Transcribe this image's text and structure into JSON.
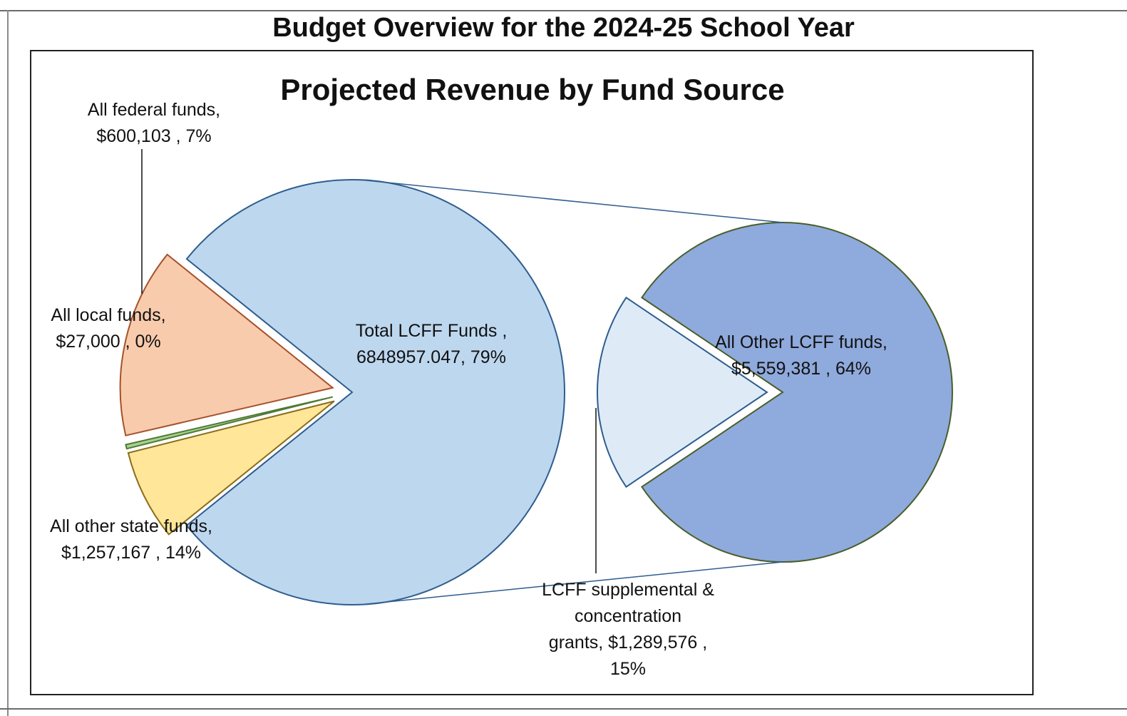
{
  "sheet_title": "Budget Overview for the 2024-25 School Year",
  "chart_data": {
    "type": "pie",
    "subtype": "pie-of-pie",
    "title": "Projected Revenue by Fund Source",
    "main_pie": {
      "slices": [
        {
          "name": "Total LCFF Funds",
          "label_lines": [
            "Total LCFF Funds ,",
            "6848957.047, 79%"
          ],
          "value": 6848957.047,
          "percent": 79,
          "color": "#bdd7ee",
          "stroke": "#2e5d8e",
          "exploded": false
        },
        {
          "name": "All federal funds",
          "label_lines": [
            "All federal funds,",
            "$600,103 , 7%"
          ],
          "value": 600103,
          "percent": 7,
          "color": "#ffe699",
          "stroke": "#8a6d1a",
          "exploded": true
        },
        {
          "name": "All local funds",
          "label_lines": [
            "All local funds,",
            "$27,000 , 0%"
          ],
          "value": 27000,
          "percent": 0,
          "color": "#a9d18e",
          "stroke": "#4e7a34",
          "exploded": true
        },
        {
          "name": "All other state funds",
          "label_lines": [
            "All other state funds,",
            "$1,257,167 , 14%"
          ],
          "value": 1257167,
          "percent": 14,
          "color": "#f8cbad",
          "stroke": "#a5522a",
          "exploded": true
        }
      ]
    },
    "secondary_pie": {
      "slices": [
        {
          "name": "All Other LCFF funds",
          "label_lines": [
            "All Other LCFF funds,",
            "$5,559,381 , 64%"
          ],
          "value": 5559381,
          "percent": 64,
          "color": "#8faadc",
          "stroke": "#4a5e2a",
          "exploded": false
        },
        {
          "name": "LCFF supplemental & concentration grants",
          "label_lines": [
            "LCFF supplemental &",
            "concentration",
            "grants,  $1,289,576 ,",
            "15%"
          ],
          "value": 1289576,
          "percent": 15,
          "color": "#deebf7",
          "stroke": "#2e5d8e",
          "exploded": true
        }
      ]
    },
    "legend": "none"
  }
}
